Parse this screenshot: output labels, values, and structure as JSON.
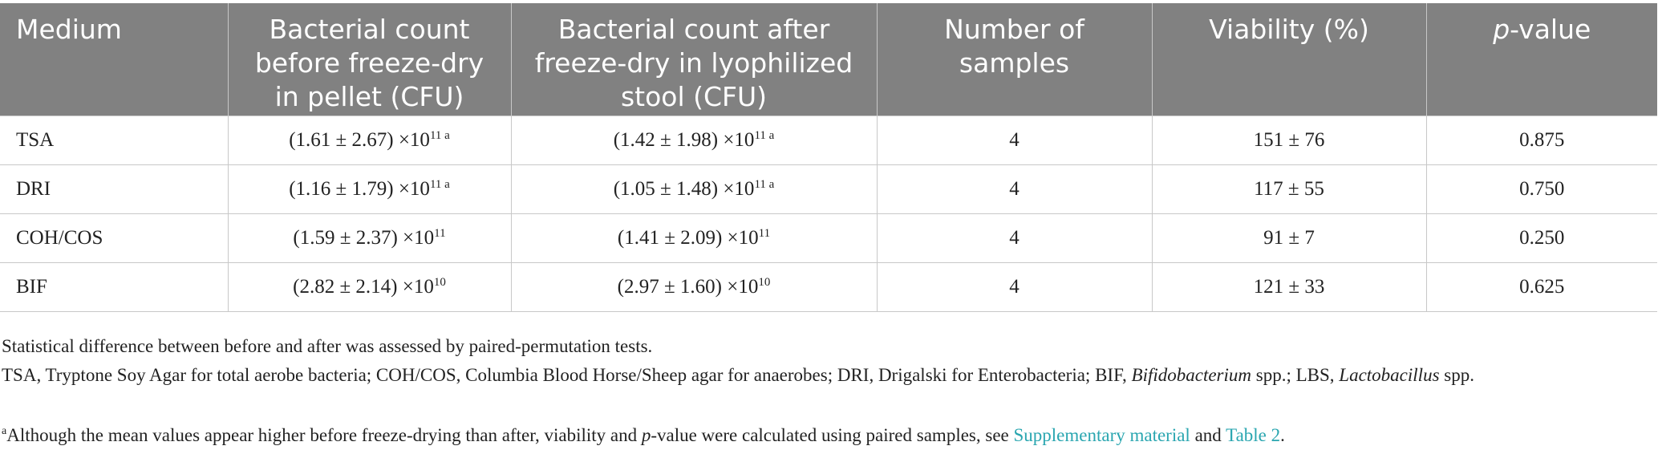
{
  "table": {
    "headers": {
      "medium": "Medium",
      "before": "Bacterial count before freeze-dry in pellet (CFU)",
      "after": "Bacterial count after freeze-dry in lyophilized stool (CFU)",
      "samples": "Number of samples",
      "viability": "Viability (%)",
      "p_italic": "p",
      "p_rest": "-value"
    },
    "rows": [
      {
        "medium": "TSA",
        "before": "(1.61 ± 2.67) ×10",
        "before_exp": "11 a",
        "after": "(1.42 ± 1.98) ×10",
        "after_exp": "11 a",
        "samples": "4",
        "viability": "151 ± 76",
        "p": "0.875"
      },
      {
        "medium": "DRI",
        "before": "(1.16 ± 1.79) ×10",
        "before_exp": "11 a",
        "after": "(1.05 ± 1.48) ×10",
        "after_exp": "11 a",
        "samples": "4",
        "viability": "117 ± 55",
        "p": "0.750"
      },
      {
        "medium": "COH/COS",
        "before": "(1.59 ± 2.37) ×10",
        "before_exp": "11",
        "after": "(1.41 ± 2.09) ×10",
        "after_exp": "11",
        "samples": "4",
        "viability": "91 ± 7",
        "p": "0.250"
      },
      {
        "medium": "BIF",
        "before": "(2.82 ± 2.14) ×10",
        "before_exp": "10",
        "after": "(2.97 ± 1.60) ×10",
        "after_exp": "10",
        "samples": "4",
        "viability": "121 ± 33",
        "p": "0.625"
      }
    ]
  },
  "footnotes": {
    "stat": "Statistical difference between before and after was assessed by paired-permutation tests.",
    "abbrev_1": "TSA, Tryptone Soy Agar for total aerobe bacteria; COH/COS, Columbia Blood Horse/Sheep agar for anaerobes; DRI, Drigalski for Enterobacteria; BIF, ",
    "abbrev_bif": "Bifidobacterium",
    "abbrev_2": " spp.; LBS, ",
    "abbrev_lbs": "Lactobacillus",
    "abbrev_3": " spp.",
    "a_mark": "a",
    "a_text_1": "Although the mean values appear higher before freeze-drying than after, viability and ",
    "a_p": "p",
    "a_text_2": "-value were calculated using paired samples, see ",
    "a_link1": "Supplementary material",
    "a_text_3": " and ",
    "a_link2": "Table 2",
    "a_text_4": "."
  }
}
